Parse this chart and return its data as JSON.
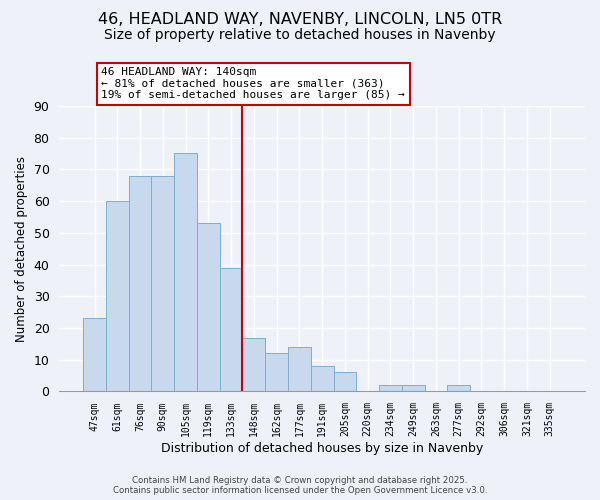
{
  "title": "46, HEADLAND WAY, NAVENBY, LINCOLN, LN5 0TR",
  "subtitle": "Size of property relative to detached houses in Navenby",
  "xlabel": "Distribution of detached houses by size in Navenby",
  "ylabel": "Number of detached properties",
  "bar_labels": [
    "47sqm",
    "61sqm",
    "76sqm",
    "90sqm",
    "105sqm",
    "119sqm",
    "133sqm",
    "148sqm",
    "162sqm",
    "177sqm",
    "191sqm",
    "205sqm",
    "220sqm",
    "234sqm",
    "249sqm",
    "263sqm",
    "277sqm",
    "292sqm",
    "306sqm",
    "321sqm",
    "335sqm"
  ],
  "bar_values": [
    23,
    60,
    68,
    68,
    75,
    53,
    39,
    17,
    12,
    14,
    8,
    6,
    0,
    2,
    2,
    0,
    2,
    0,
    0,
    0,
    0
  ],
  "bar_color": "#c9d9ed",
  "bar_edge_color": "#7bafd4",
  "vline_color": "#cc0000",
  "vline_x_index": 6.5,
  "ylim": [
    0,
    90
  ],
  "yticks": [
    0,
    10,
    20,
    30,
    40,
    50,
    60,
    70,
    80,
    90
  ],
  "annotation_title": "46 HEADLAND WAY: 140sqm",
  "annotation_line1": "← 81% of detached houses are smaller (363)",
  "annotation_line2": "19% of semi-detached houses are larger (85) →",
  "footer1": "Contains HM Land Registry data © Crown copyright and database right 2025.",
  "footer2": "Contains public sector information licensed under the Open Government Licence v3.0.",
  "background_color": "#eef2f8",
  "grid_color": "#ffffff",
  "title_fontsize": 11.5,
  "subtitle_fontsize": 10
}
